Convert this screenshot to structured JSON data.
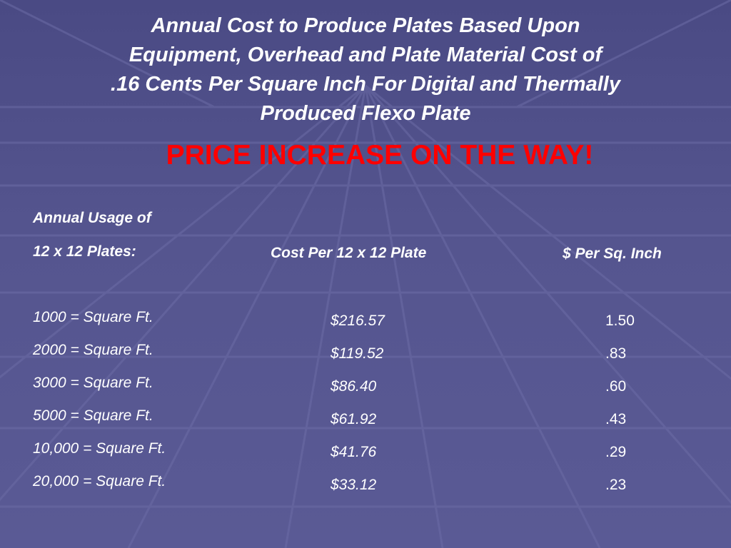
{
  "title_lines": [
    "Annual Cost to Produce Plates Based Upon",
    "Equipment, Overhead and Plate Material Cost of",
    ".16 Cents Per Square Inch For Digital and Thermally",
    "Produced Flexo Plate"
  ],
  "warning": "PRICE INCREASE ON THE WAY!",
  "headers": {
    "usage_line1": "Annual Usage of",
    "usage_line2": "12 x 12 Plates:",
    "cost": "Cost Per 12 x 12 Plate",
    "per_sq_inch": "$ Per Sq. Inch"
  },
  "rows": [
    {
      "usage": "1000 = Square Ft.",
      "cost": "$216.57",
      "per_sq_inch": "1.50"
    },
    {
      "usage": "2000 = Square Ft.",
      "cost": "$119.52",
      "per_sq_inch": ".83"
    },
    {
      "usage": "3000 = Square Ft.",
      "cost": "$86.40",
      "per_sq_inch": ".60"
    },
    {
      "usage": "5000 = Square Ft.",
      "cost": "$61.92",
      "per_sq_inch": ".43"
    },
    {
      "usage": "10,000 = Square Ft.",
      "cost": "$41.76",
      "per_sq_inch": ".29"
    },
    {
      "usage": "20,000 = Square Ft.",
      "cost": "$33.12",
      "per_sq_inch": ".23"
    }
  ],
  "colors": {
    "background": "#55558f",
    "text": "#ffffff",
    "warning": "#ff0000"
  }
}
